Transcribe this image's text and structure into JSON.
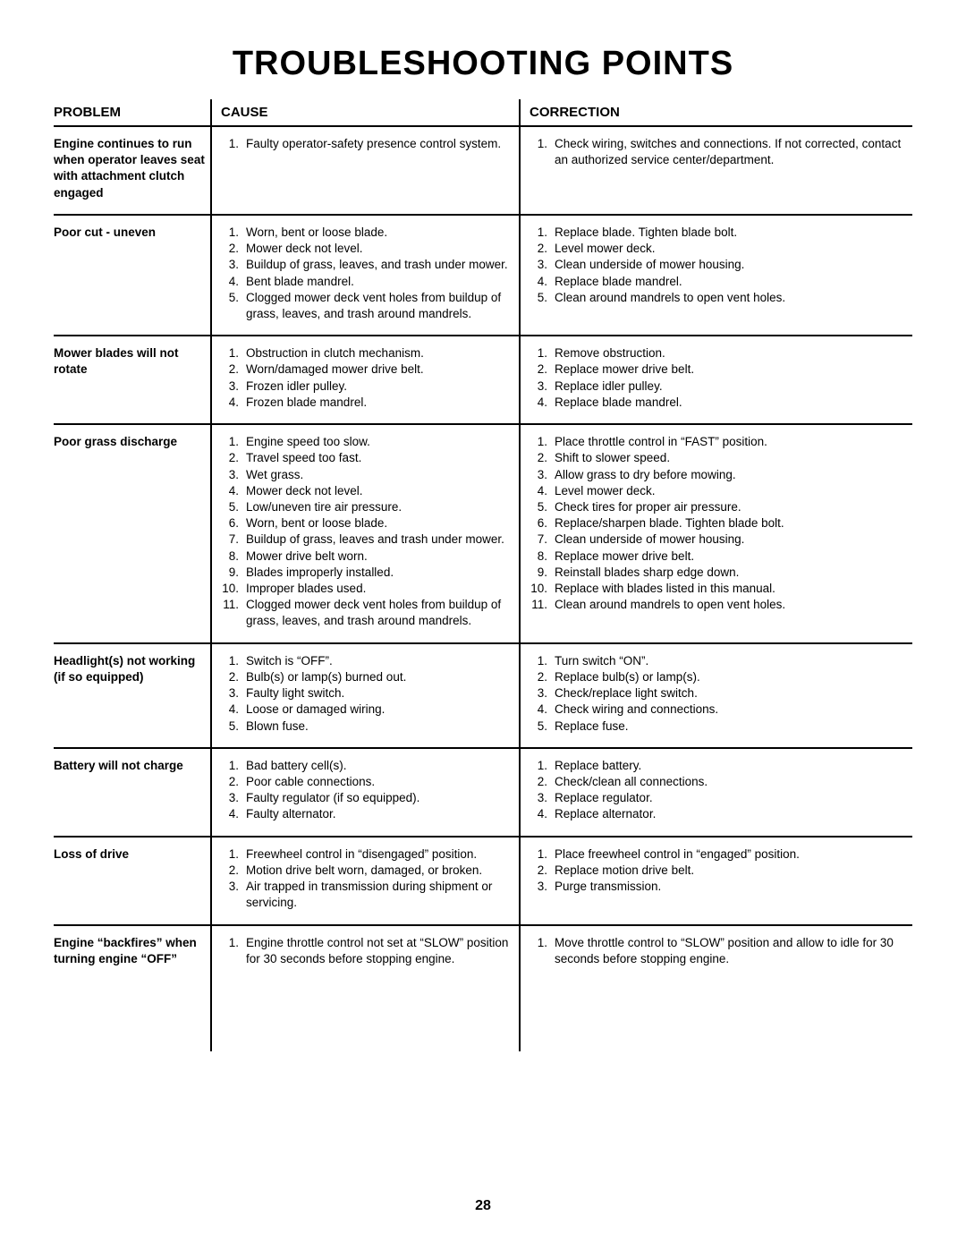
{
  "title": "TROUBLESHOOTING POINTS",
  "page_number": "28",
  "headers": {
    "problem": "PROBLEM",
    "cause": "CAUSE",
    "correction": "CORRECTION"
  },
  "sections": [
    {
      "problem": "Engine continues to run when operator leaves seat with attachment clutch engaged",
      "causes": [
        "Faulty operator-safety presence control system."
      ],
      "corrections": [
        "Check wiring, switches and connections. If not corrected, contact an authorized service center/department."
      ]
    },
    {
      "problem": "Poor cut - uneven",
      "causes": [
        "Worn, bent or loose blade.",
        "Mower deck not level.",
        "Buildup of grass, leaves, and trash under mower.",
        "Bent blade mandrel.",
        "Clogged mower deck vent holes from buildup of grass, leaves, and trash around mandrels."
      ],
      "corrections": [
        "Replace blade. Tighten blade bolt.",
        "Level mower deck.",
        "Clean underside of mower housing.",
        "Replace blade mandrel.",
        "Clean around mandrels to open vent holes."
      ]
    },
    {
      "problem": "Mower blades will not rotate",
      "causes": [
        "Obstruction in clutch mechanism.",
        "Worn/damaged mower drive belt.",
        "Frozen idler pulley.",
        "Frozen blade mandrel."
      ],
      "corrections": [
        "Remove obstruction.",
        "Replace mower drive belt.",
        "Replace idler pulley.",
        "Replace blade mandrel."
      ]
    },
    {
      "problem": "Poor grass discharge",
      "causes": [
        "Engine speed too slow.",
        "Travel speed too fast.",
        "Wet grass.",
        "Mower deck not level.",
        "Low/uneven tire air pressure.",
        "Worn, bent or loose blade.",
        "Buildup of grass, leaves and trash under mower.",
        "Mower drive belt worn.",
        "Blades improperly installed.",
        "Improper blades used.",
        "Clogged mower deck vent holes from buildup of grass, leaves, and trash around mandrels."
      ],
      "corrections": [
        "Place throttle control in “FAST” position.",
        "Shift to slower speed.",
        "Allow grass to dry before mowing.",
        "Level mower deck.",
        "Check tires for proper air pressure.",
        "Replace/sharpen blade. Tighten blade bolt.",
        "Clean underside of mower housing.",
        "Replace mower drive belt.",
        "Reinstall blades sharp edge down.",
        "Replace with blades listed in this manual.",
        "Clean around mandrels to open vent holes."
      ]
    },
    {
      "problem": "Headlight(s) not working (if so equipped)",
      "causes": [
        "Switch is “OFF”.",
        "Bulb(s) or lamp(s) burned out.",
        "Faulty light switch.",
        "Loose or damaged wiring.",
        "Blown fuse."
      ],
      "corrections": [
        "Turn switch “ON”.",
        "Replace bulb(s) or lamp(s).",
        "Check/replace light switch.",
        "Check wiring and connections.",
        "Replace fuse."
      ]
    },
    {
      "problem": "Battery will not charge",
      "causes": [
        "Bad battery cell(s).",
        "Poor cable connections.",
        "Faulty regulator (if so equipped).",
        "Faulty alternator."
      ],
      "corrections": [
        "Replace battery.",
        "Check/clean all connections.",
        "Replace regulator.",
        "Replace alternator."
      ]
    },
    {
      "problem": "Loss of drive",
      "causes": [
        "Freewheel control in “disengaged” position.",
        "Motion drive belt worn, damaged, or broken.",
        "Air trapped in transmission during shipment or servicing."
      ],
      "corrections": [
        "Place freewheel control in “engaged” position.",
        "Replace motion drive belt.",
        "Purge transmission."
      ]
    },
    {
      "problem": "Engine “backfires” when turning engine “OFF”",
      "causes": [
        "Engine throttle control not set at “SLOW” position for 30 seconds before stopping engine."
      ],
      "corrections": [
        "Move throttle control to “SLOW” position and allow to idle for 30 seconds before stopping engine."
      ]
    }
  ]
}
